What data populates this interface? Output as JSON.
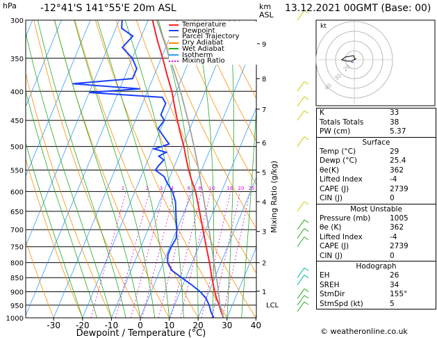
{
  "header": {
    "location": "-12°41'S  141°55'E  20m  ASL",
    "datetime": "13.12.2021  00GMT  (Base: 00)",
    "hpa_unit": "hPa",
    "km_unit": "km",
    "asl_unit": "ASL"
  },
  "axes": {
    "xlabel": "Dewpoint / Temperature (°C)",
    "mixing_label": "Mixing Ratio (g/kg)"
  },
  "legend": {
    "items": [
      {
        "label": "Temperature",
        "color": "#ff2020",
        "dash": ""
      },
      {
        "label": "Dewpoint",
        "color": "#1a3fff",
        "dash": ""
      },
      {
        "label": "Parcel Trajectory",
        "color": "#a0a0a0",
        "dash": ""
      },
      {
        "label": "Dry Adiabat",
        "color": "#ff8c00",
        "dash": ""
      },
      {
        "label": "Wet Adiabat",
        "color": "#22aa22",
        "dash": ""
      },
      {
        "label": "Isotherm",
        "color": "#3399ff",
        "dash": ""
      },
      {
        "label": "Mixing Ratio",
        "color": "#dd00dd",
        "dash": "2,2"
      }
    ]
  },
  "chart_data": {
    "type": "line",
    "title": "Skew-T log-P sounding",
    "x_ticks": [
      "-30",
      "-20",
      "-10",
      "0",
      "10",
      "20",
      "30",
      "40"
    ],
    "p_ticks": [
      "300",
      "350",
      "400",
      "450",
      "500",
      "550",
      "600",
      "650",
      "700",
      "750",
      "800",
      "850",
      "900",
      "950",
      "1000"
    ],
    "km_ticks": [
      {
        "km": "9",
        "p": 330
      },
      {
        "km": "8",
        "p": 380
      },
      {
        "km": "7",
        "p": 430
      },
      {
        "km": "6",
        "p": 492
      },
      {
        "km": "5",
        "p": 555
      },
      {
        "km": "4",
        "p": 625
      },
      {
        "km": "3",
        "p": 705
      },
      {
        "km": "2",
        "p": 800
      },
      {
        "km": "1",
        "p": 898
      }
    ],
    "lcl_label": "LCL",
    "lcl_p": 948,
    "mixing_ratio_values": [
      "1",
      "2",
      "3",
      "4",
      "6",
      "8",
      "10",
      "16",
      "20",
      "25"
    ],
    "series": [
      {
        "name": "Temperature",
        "color": "#ff2020",
        "points": [
          [
            1000,
            28.8
          ],
          [
            975,
            27
          ],
          [
            950,
            25.5
          ],
          [
            925,
            23.6
          ],
          [
            900,
            22
          ],
          [
            850,
            19
          ],
          [
            800,
            16
          ],
          [
            750,
            12.6
          ],
          [
            700,
            9
          ],
          [
            650,
            5.2
          ],
          [
            600,
            1
          ],
          [
            575,
            -1.8
          ],
          [
            550,
            -4.5
          ],
          [
            525,
            -7
          ],
          [
            500,
            -9.5
          ],
          [
            475,
            -12.5
          ],
          [
            450,
            -15.5
          ],
          [
            425,
            -18.5
          ],
          [
            400,
            -21.6
          ],
          [
            375,
            -25.5
          ],
          [
            350,
            -29.5
          ],
          [
            325,
            -34
          ],
          [
            300,
            -38.5
          ]
        ]
      },
      {
        "name": "Dewpoint",
        "color": "#1a3fff",
        "points": [
          [
            1000,
            25.4
          ],
          [
            975,
            23.5
          ],
          [
            950,
            22
          ],
          [
            925,
            20
          ],
          [
            900,
            17
          ],
          [
            875,
            13
          ],
          [
            850,
            8.5
          ],
          [
            825,
            4
          ],
          [
            800,
            1.5
          ],
          [
            775,
            0.5
          ],
          [
            750,
            0.5
          ],
          [
            725,
            1
          ],
          [
            700,
            0
          ],
          [
            675,
            -1.5
          ],
          [
            650,
            -3
          ],
          [
            625,
            -4.5
          ],
          [
            600,
            -7
          ],
          [
            580,
            -10
          ],
          [
            565,
            -12
          ],
          [
            550,
            -16
          ],
          [
            540,
            -15.5
          ],
          [
            528,
            -14.5
          ],
          [
            520,
            -16.8
          ],
          [
            512,
            -14.8
          ],
          [
            505,
            -19.5
          ],
          [
            500,
            -17
          ],
          [
            495,
            -15
          ],
          [
            480,
            -18
          ],
          [
            465,
            -21
          ],
          [
            450,
            -20
          ],
          [
            440,
            -22
          ],
          [
            420,
            -22
          ],
          [
            410,
            -24
          ],
          [
            402,
            -50
          ],
          [
            396,
            -33
          ],
          [
            388,
            -57
          ],
          [
            380,
            -37
          ],
          [
            365,
            -37
          ],
          [
            350,
            -40
          ],
          [
            335,
            -45
          ],
          [
            320,
            -43
          ],
          [
            310,
            -48
          ],
          [
            300,
            -49
          ]
        ]
      },
      {
        "name": "Parcel Trajectory",
        "color": "#a0a0a0",
        "points": [
          [
            1000,
            28.8
          ],
          [
            948,
            25.6
          ],
          [
            900,
            23.3
          ],
          [
            850,
            20.6
          ],
          [
            800,
            17.6
          ],
          [
            750,
            14.5
          ],
          [
            700,
            11.1
          ],
          [
            650,
            7.4
          ],
          [
            600,
            3.4
          ],
          [
            550,
            -1
          ],
          [
            500,
            -6
          ],
          [
            450,
            -11.8
          ],
          [
            400,
            -18.6
          ],
          [
            350,
            -27
          ],
          [
            300,
            -37
          ]
        ]
      }
    ]
  },
  "hodograph": {
    "label": "kt",
    "ring_labels": [
      "40",
      "30",
      "20"
    ]
  },
  "indices": {
    "top": [
      {
        "label": "K",
        "value": "33"
      },
      {
        "label": "Totals Totals",
        "value": "38"
      },
      {
        "label": "PW (cm)",
        "value": "5.37"
      }
    ],
    "surface": {
      "title": "Surface",
      "rows": [
        {
          "label": "Temp (°C)",
          "value": "29"
        },
        {
          "label": "Dewp (°C)",
          "value": "25.4"
        },
        {
          "label": "θe(K)",
          "value": "362"
        },
        {
          "label": "Lifted Index",
          "value": "-4"
        },
        {
          "label": "CAPE (J)",
          "value": "2739"
        },
        {
          "label": "CIN (J)",
          "value": "0"
        }
      ]
    },
    "most_unstable": {
      "title": "Most Unstable",
      "rows": [
        {
          "label": "Pressure (mb)",
          "value": "1005"
        },
        {
          "label": "θe (K)",
          "value": "362"
        },
        {
          "label": "Lifted Index",
          "value": "-4"
        },
        {
          "label": "CAPE (J)",
          "value": "2739"
        },
        {
          "label": "CIN (J)",
          "value": "0"
        }
      ]
    },
    "hodograph_box": {
      "title": "Hodograph",
      "rows": [
        {
          "label": "EH",
          "value": "26"
        },
        {
          "label": "SREH",
          "value": "34"
        },
        {
          "label": "StmDir",
          "value": "155°"
        },
        {
          "label": "StmSpd (kt)",
          "value": "5"
        }
      ]
    }
  },
  "credit": "© weatheronline.co.uk"
}
